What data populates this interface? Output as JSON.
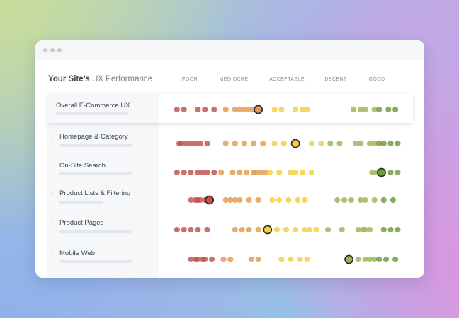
{
  "window": {
    "title_dots": 3
  },
  "heading": {
    "prefix": "Your Site’s ",
    "highlight": "UX Performance"
  },
  "columns": [
    "POOR",
    "MEDIOCRE",
    "ACCEPTABLE",
    "DECENT",
    "GOOD"
  ],
  "colors": {
    "poor": "#c0514e",
    "mediocre": "#e49a4f",
    "acceptable": "#f2cf3e",
    "decent": "#9bb555",
    "good": "#6f9a3e",
    "highlight_stroke": "#2b2b2b"
  },
  "rows": [
    {
      "label": "Overall E-Commerce UX",
      "expandable": false,
      "chevron": "",
      "current_score": 0.38,
      "scores": [
        0.03,
        0.06,
        0.12,
        0.15,
        0.19,
        0.24,
        0.28,
        0.3,
        0.32,
        0.34,
        0.36,
        0.45,
        0.48,
        0.54,
        0.57,
        0.59,
        0.79,
        0.82,
        0.84,
        0.88,
        0.9,
        0.94,
        0.97
      ]
    },
    {
      "label": "Homepage & Category",
      "expandable": true,
      "chevron": "›",
      "current_score": 0.54,
      "scores": [
        0.04,
        0.05,
        0.07,
        0.09,
        0.11,
        0.13,
        0.16,
        0.24,
        0.28,
        0.32,
        0.36,
        0.4,
        0.45,
        0.49,
        0.61,
        0.65,
        0.69,
        0.73,
        0.8,
        0.82,
        0.86,
        0.88,
        0.9,
        0.92,
        0.95,
        0.98
      ]
    },
    {
      "label": "On-Site Search",
      "expandable": true,
      "chevron": "›",
      "current_score": 0.91,
      "scores": [
        0.03,
        0.06,
        0.09,
        0.12,
        0.14,
        0.16,
        0.19,
        0.22,
        0.27,
        0.3,
        0.33,
        0.36,
        0.37,
        0.39,
        0.41,
        0.43,
        0.47,
        0.52,
        0.54,
        0.57,
        0.61,
        0.87,
        0.89,
        0.95,
        0.98
      ]
    },
    {
      "label": "Product Lists & Filtering",
      "expandable": true,
      "chevron": "›",
      "current_score": 0.17,
      "scores": [
        0.09,
        0.11,
        0.12,
        0.13,
        0.15,
        0.24,
        0.26,
        0.28,
        0.3,
        0.34,
        0.38,
        0.44,
        0.47,
        0.51,
        0.55,
        0.58,
        0.72,
        0.75,
        0.78,
        0.82,
        0.84,
        0.88,
        0.92,
        0.96
      ]
    },
    {
      "label": "Product Pages",
      "expandable": true,
      "chevron": "›",
      "current_score": 0.42,
      "scores": [
        0.03,
        0.06,
        0.09,
        0.12,
        0.16,
        0.28,
        0.31,
        0.34,
        0.38,
        0.46,
        0.5,
        0.54,
        0.58,
        0.6,
        0.63,
        0.68,
        0.74,
        0.81,
        0.83,
        0.84,
        0.86,
        0.92,
        0.95,
        0.98
      ]
    },
    {
      "label": "Mobile Web",
      "expandable": true,
      "chevron": "›",
      "current_score": 0.77,
      "scores": [
        0.09,
        0.11,
        0.12,
        0.14,
        0.15,
        0.18,
        0.23,
        0.26,
        0.35,
        0.38,
        0.48,
        0.52,
        0.56,
        0.59,
        0.81,
        0.84,
        0.86,
        0.88,
        0.9,
        0.93,
        0.97
      ]
    }
  ]
}
